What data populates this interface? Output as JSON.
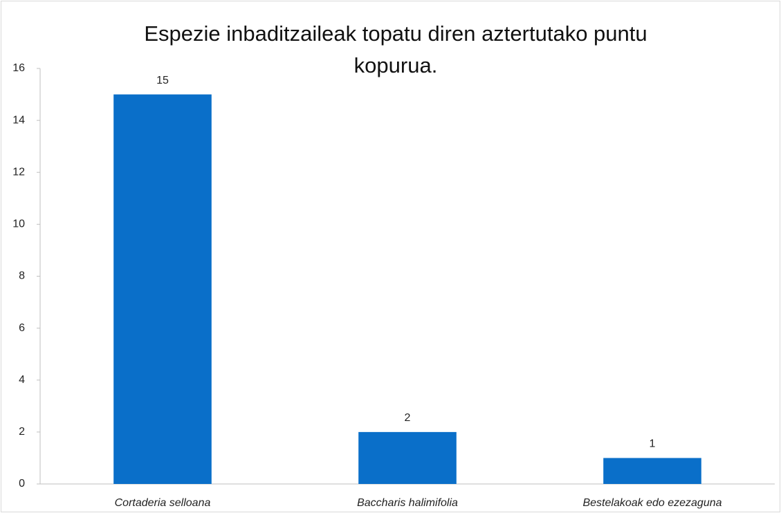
{
  "chart_data": {
    "type": "bar",
    "title": "Espezie inbaditzaileak topatu diren aztertutako puntu kopurua.",
    "categories": [
      "Cortaderia selloana",
      "Baccharis halimifolia",
      "Bestelakoak edo ezezaguna"
    ],
    "values": [
      15,
      2,
      1
    ],
    "color": "#0a6fc9",
    "ylim": [
      0,
      16
    ],
    "yticks": [
      0,
      2,
      4,
      6,
      8,
      10,
      12,
      14,
      16
    ],
    "grid": false
  }
}
